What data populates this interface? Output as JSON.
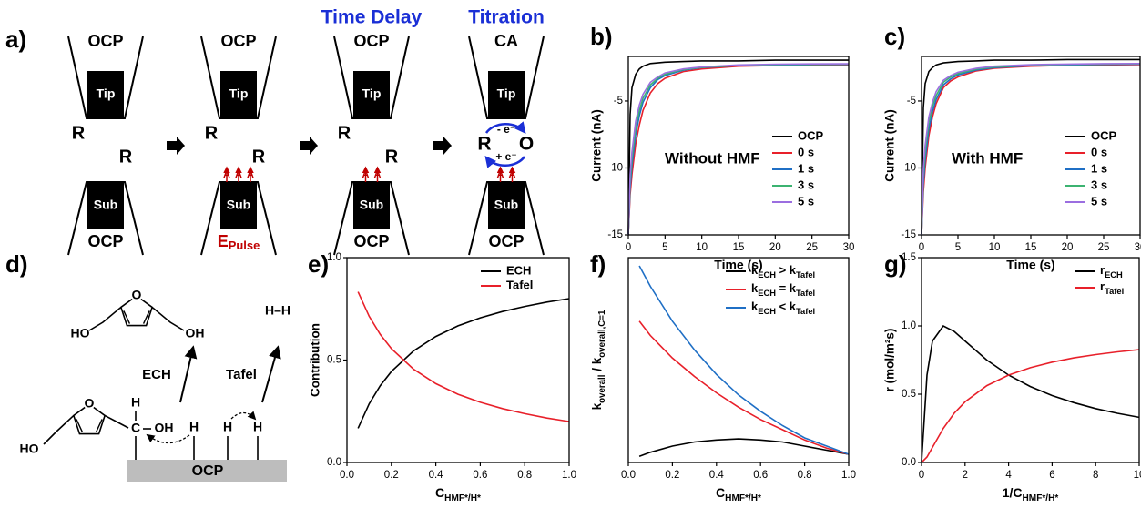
{
  "panel_labels": [
    "a)",
    "b)",
    "c)",
    "d)",
    "e)",
    "f)",
    "g)"
  ],
  "schematic": {
    "steps": [
      {
        "tip_mode": "OCP",
        "tip": "Tip",
        "species": [
          "R",
          "R"
        ],
        "sub": "Sub",
        "sub_mode": "OCP"
      },
      {
        "tip_mode": "OCP",
        "tip": "Tip",
        "species": [
          "R",
          "R"
        ],
        "sub": "Sub",
        "sub_mode": [
          "E",
          "Pulse"
        ],
        "adsorbates": [
          "A",
          "A",
          "A"
        ]
      },
      {
        "header": "Time Delay",
        "tip_mode": "OCP",
        "tip": "Tip",
        "species": [
          "R",
          "R"
        ],
        "sub": "Sub",
        "sub_mode": "OCP",
        "adsorbates": [
          "A",
          "A"
        ]
      },
      {
        "header": "Titration",
        "tip_mode": "CA",
        "tip": "Tip",
        "species": [
          "R",
          "O"
        ],
        "electron_labels": [
          "- e⁻",
          "+ e⁻"
        ],
        "sub": "Sub",
        "sub_mode": "OCP",
        "adsorbates": [
          "A",
          "A"
        ]
      }
    ]
  },
  "mechanism": {
    "product_ech": {
      "left": "HO",
      "ring_o": "O",
      "right": "OH"
    },
    "product_tafel": "H–H",
    "routes": [
      "ECH",
      "Tafel"
    ],
    "reactant": {
      "left": "HO",
      "ring_o": "O",
      "h_top": "H",
      "c": "C",
      "oh": "OH"
    },
    "hydrogens": [
      "H",
      "H",
      "H"
    ],
    "surface": "OCP"
  },
  "chart_data": [
    {
      "type": "line",
      "x_label": "Time (s)",
      "y_label": "Current (nA)",
      "annotation": "Without HMF",
      "xlim": [
        0,
        30
      ],
      "ylim": [
        -15,
        -1.67
      ],
      "xticks": [
        0,
        5,
        10,
        15,
        20,
        25,
        30
      ],
      "yticks": [
        -15,
        -10,
        -5
      ],
      "x": [
        0,
        0.25,
        0.5,
        1,
        1.5,
        2,
        3,
        4,
        5,
        7.5,
        10,
        15,
        20,
        25,
        30
      ],
      "series": [
        {
          "name": "OCP",
          "color": "#000000",
          "values": [
            -15,
            -6,
            -4,
            -3,
            -2.6,
            -2.4,
            -2.2,
            -2.15,
            -2.1,
            -2.05,
            -2.0,
            -2.0,
            -1.95,
            -1.95,
            -1.95
          ]
        },
        {
          "name": "0 s",
          "color": "#e8202a",
          "values": [
            -15,
            -12,
            -10.5,
            -8.2,
            -6.8,
            -5.7,
            -4.4,
            -3.7,
            -3.3,
            -2.8,
            -2.6,
            -2.4,
            -2.35,
            -2.3,
            -2.3
          ]
        },
        {
          "name": "1 s",
          "color": "#1f6fc5",
          "values": [
            -15,
            -11.5,
            -9.8,
            -7.5,
            -6.1,
            -5.1,
            -4.0,
            -3.4,
            -3.1,
            -2.7,
            -2.5,
            -2.35,
            -2.3,
            -2.28,
            -2.27
          ]
        },
        {
          "name": "3 s",
          "color": "#3cb371",
          "values": [
            -15,
            -11,
            -9.3,
            -7.0,
            -5.7,
            -4.8,
            -3.8,
            -3.3,
            -3.0,
            -2.65,
            -2.48,
            -2.33,
            -2.28,
            -2.26,
            -2.25
          ]
        },
        {
          "name": "5 s",
          "color": "#9b6ee0",
          "values": [
            -15,
            -10.5,
            -8.8,
            -6.5,
            -5.3,
            -4.5,
            -3.6,
            -3.2,
            -2.9,
            -2.6,
            -2.45,
            -2.3,
            -2.25,
            -2.23,
            -2.22
          ]
        }
      ]
    },
    {
      "type": "line",
      "x_label": "Time (s)",
      "y_label": "Current (nA)",
      "annotation": "With HMF",
      "xlim": [
        0,
        30
      ],
      "ylim": [
        -15,
        -1.67
      ],
      "xticks": [
        0,
        5,
        10,
        15,
        20,
        25,
        30
      ],
      "yticks": [
        -15,
        -10,
        -5
      ],
      "x": [
        0,
        0.25,
        0.5,
        1,
        1.5,
        2,
        3,
        4,
        5,
        7.5,
        10,
        15,
        20,
        25,
        30
      ],
      "series": [
        {
          "name": "OCP",
          "color": "#000000",
          "values": [
            -15,
            -5.5,
            -3.7,
            -2.8,
            -2.5,
            -2.3,
            -2.15,
            -2.1,
            -2.05,
            -2.0,
            -1.95,
            -1.95,
            -1.9,
            -1.9,
            -1.9
          ]
        },
        {
          "name": "0 s",
          "color": "#e8202a",
          "values": [
            -15,
            -11.8,
            -10,
            -7.6,
            -6.2,
            -5.2,
            -4.0,
            -3.5,
            -3.2,
            -2.75,
            -2.55,
            -2.4,
            -2.33,
            -2.3,
            -2.28
          ]
        },
        {
          "name": "1 s",
          "color": "#1f6fc5",
          "values": [
            -15,
            -11.2,
            -9.4,
            -7.1,
            -5.8,
            -4.9,
            -3.8,
            -3.35,
            -3.05,
            -2.68,
            -2.5,
            -2.36,
            -2.3,
            -2.27,
            -2.25
          ]
        },
        {
          "name": "3 s",
          "color": "#3cb371",
          "values": [
            -15,
            -10.6,
            -8.8,
            -6.6,
            -5.4,
            -4.6,
            -3.6,
            -3.2,
            -2.95,
            -2.62,
            -2.45,
            -2.32,
            -2.27,
            -2.24,
            -2.22
          ]
        },
        {
          "name": "5 s",
          "color": "#9b6ee0",
          "values": [
            -15,
            -10,
            -8.3,
            -6.2,
            -5.1,
            -4.3,
            -3.45,
            -3.1,
            -2.85,
            -2.56,
            -2.4,
            -2.28,
            -2.24,
            -2.21,
            -2.2
          ]
        }
      ]
    },
    {
      "type": "line",
      "x_label": [
        "C",
        "HMF*/H*"
      ],
      "y_label": "Contribution",
      "xlim": [
        0,
        1
      ],
      "ylim": [
        0,
        1
      ],
      "xticks": [
        {
          "value": 0,
          "label": "0.0"
        },
        {
          "value": 0.2,
          "label": "0.2"
        },
        {
          "value": 0.4,
          "label": "0.4"
        },
        {
          "value": 0.6,
          "label": "0.6"
        },
        {
          "value": 0.8,
          "label": "0.8"
        },
        {
          "value": 1,
          "label": "1.0"
        }
      ],
      "yticks": [
        {
          "value": 0,
          "label": "0.0"
        },
        {
          "value": 0.5,
          "label": "0.5"
        },
        {
          "value": 1,
          "label": "1.0"
        }
      ],
      "x": [
        0.05,
        0.1,
        0.15,
        0.2,
        0.3,
        0.4,
        0.5,
        0.6,
        0.7,
        0.8,
        0.9,
        1.0
      ],
      "series": [
        {
          "name": "ECH",
          "color": "#000000",
          "values": [
            0.167,
            0.286,
            0.375,
            0.444,
            0.545,
            0.615,
            0.667,
            0.706,
            0.737,
            0.762,
            0.783,
            0.8
          ]
        },
        {
          "name": "Tafel",
          "color": "#e8202a",
          "values": [
            0.833,
            0.714,
            0.625,
            0.556,
            0.455,
            0.385,
            0.333,
            0.294,
            0.263,
            0.238,
            0.217,
            0.2
          ]
        }
      ]
    },
    {
      "type": "line",
      "x_label": [
        "C",
        "HMF*/H*"
      ],
      "y_label": [
        "k",
        "overall",
        " / k",
        "overall,C=1"
      ],
      "xlim": [
        0,
        1
      ],
      "ylim": [
        0,
        1
      ],
      "xticks": [
        {
          "value": 0,
          "label": "0.0"
        },
        {
          "value": 0.2,
          "label": "0.2"
        },
        {
          "value": 0.4,
          "label": "0.4"
        },
        {
          "value": 0.6,
          "label": "0.6"
        },
        {
          "value": 0.8,
          "label": "0.8"
        },
        {
          "value": 1,
          "label": "1.0"
        }
      ],
      "x": [
        0.05,
        0.1,
        0.2,
        0.3,
        0.4,
        0.5,
        0.6,
        0.7,
        0.8,
        0.9,
        1.0
      ],
      "series": [
        {
          "name": [
            "k",
            "ECH",
            " > k",
            "Tafel"
          ],
          "color": "#000000",
          "values": [
            0.03,
            0.05,
            0.08,
            0.1,
            0.11,
            0.115,
            0.11,
            0.1,
            0.08,
            0.06,
            0.04
          ]
        },
        {
          "name": [
            "k",
            "ECH",
            " = k",
            "Tafel"
          ],
          "color": "#e8202a",
          "values": [
            0.69,
            0.62,
            0.51,
            0.42,
            0.34,
            0.27,
            0.21,
            0.16,
            0.11,
            0.07,
            0.04
          ]
        },
        {
          "name": [
            "k",
            "ECH",
            " < k",
            "Tafel"
          ],
          "color": "#1f6fc5",
          "values": [
            0.96,
            0.86,
            0.69,
            0.55,
            0.43,
            0.33,
            0.25,
            0.18,
            0.12,
            0.08,
            0.04
          ]
        }
      ]
    },
    {
      "type": "line",
      "x_label": [
        "1/C",
        "HMF*/H*"
      ],
      "y_label": "r (mol/m²s)",
      "xlim": [
        0,
        10
      ],
      "ylim": [
        0,
        1.5
      ],
      "xticks": [
        0,
        2,
        4,
        6,
        8,
        10
      ],
      "yticks": [
        {
          "value": 0,
          "label": "0.0"
        },
        {
          "value": 0.5,
          "label": "0.5"
        },
        {
          "value": 1,
          "label": "1.0"
        },
        {
          "value": 1.5,
          "label": "1.5"
        }
      ],
      "x": [
        0,
        0.25,
        0.5,
        1,
        1.5,
        2,
        3,
        4,
        5,
        6,
        7,
        8,
        9,
        10
      ],
      "series": [
        {
          "name": [
            "r",
            "ECH"
          ],
          "color": "#000000",
          "values": [
            0,
            0.64,
            0.889,
            1,
            0.96,
            0.889,
            0.75,
            0.64,
            0.556,
            0.49,
            0.438,
            0.395,
            0.36,
            0.331
          ]
        },
        {
          "name": [
            "r",
            "Tafel"
          ],
          "color": "#e8202a",
          "values": [
            0,
            0.04,
            0.111,
            0.25,
            0.36,
            0.444,
            0.563,
            0.64,
            0.694,
            0.735,
            0.766,
            0.79,
            0.81,
            0.826
          ]
        }
      ]
    }
  ]
}
